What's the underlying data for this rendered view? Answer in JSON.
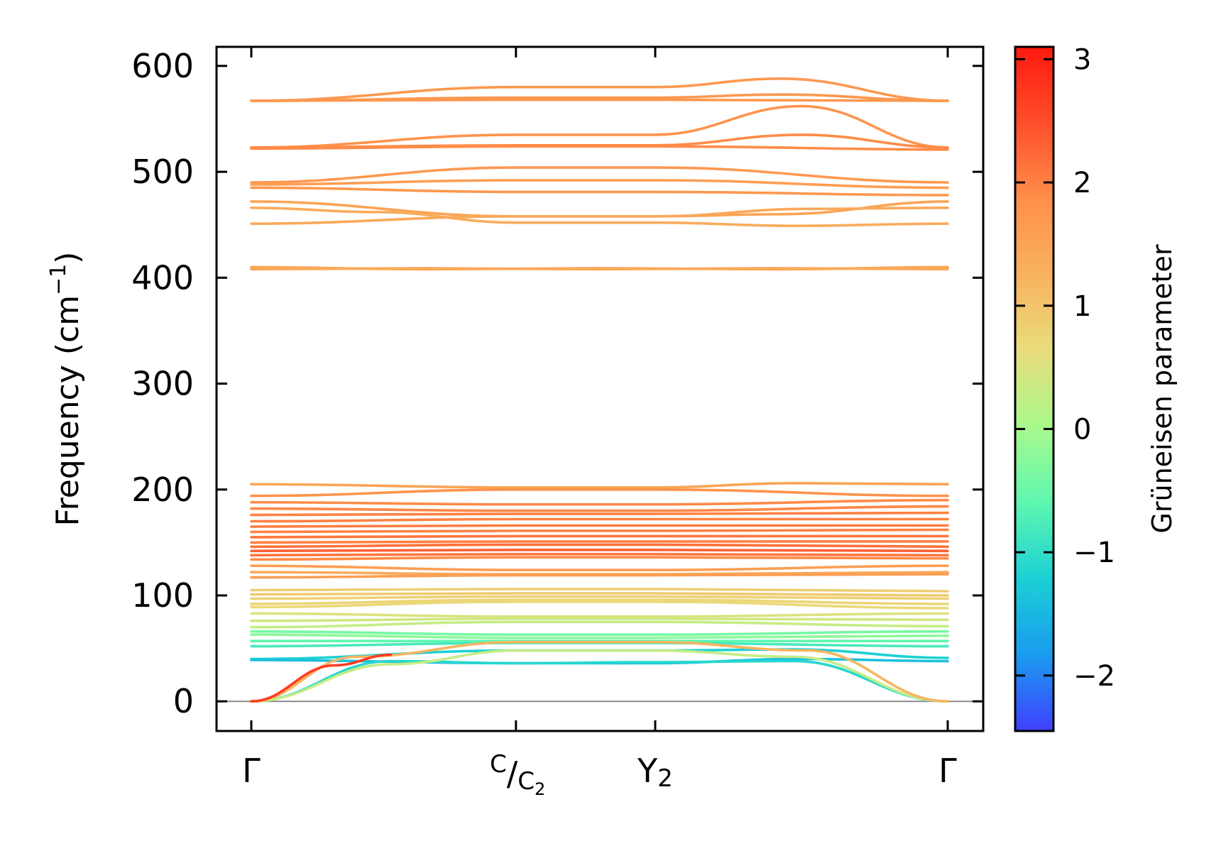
{
  "chart_data": {
    "type": "line",
    "ylabel": "Frequency (cm",
    "ylabel_sup": "−1",
    "ylabel_close": ")",
    "ylim": [
      -28,
      618
    ],
    "y_ticks": [
      0,
      100,
      200,
      300,
      400,
      500,
      600
    ],
    "x_ticks": [
      {
        "pos": 0.0,
        "label": "Γ"
      },
      {
        "pos": 0.38,
        "label_sup": "C",
        "label_mid": "/",
        "label_sub": "C",
        "label_subsub": "2"
      },
      {
        "pos": 0.58,
        "label": "Y",
        "label_sub": "2"
      },
      {
        "pos": 1.0,
        "label": "Γ"
      }
    ],
    "colorbar": {
      "label": "Grüneisen parameter",
      "range": [
        -2.45,
        3.1
      ],
      "ticks": [
        -2,
        -1,
        0,
        1,
        2,
        3
      ],
      "tick_labels": [
        "−2",
        "−1",
        "0",
        "1",
        "2",
        "3"
      ],
      "colormap": [
        "#4040ff",
        "#1a9bef",
        "#1bd0d5",
        "#5ef7b0",
        "#a8f98c",
        "#e9dd7c",
        "#f8b25f",
        "#ff8f4a",
        "#ff4e2a",
        "#ff1a10"
      ]
    },
    "zero_line": 0,
    "series": [
      {
        "x": [
          0,
          0.38,
          0.58,
          0.76,
          1.0
        ],
        "y": [
          567,
          580,
          580,
          588,
          567
        ],
        "g": 1.7
      },
      {
        "x": [
          0,
          0.38,
          0.58,
          1.0
        ],
        "y": [
          567,
          568,
          568,
          567
        ],
        "g": 1.7
      },
      {
        "x": [
          0,
          0.38,
          0.58,
          0.76,
          1.0
        ],
        "y": [
          567,
          570,
          570,
          573,
          567
        ],
        "g": 1.7
      },
      {
        "x": [
          0,
          0.38,
          0.58,
          0.79,
          1.0
        ],
        "y": [
          523,
          535,
          535,
          562,
          523
        ],
        "g": 1.8
      },
      {
        "x": [
          0,
          0.38,
          0.58,
          0.79,
          1.0
        ],
        "y": [
          523,
          525,
          525,
          535,
          523
        ],
        "g": 1.9
      },
      {
        "x": [
          0,
          0.38,
          0.58,
          1.0
        ],
        "y": [
          522,
          524,
          524,
          521
        ],
        "g": 1.9
      },
      {
        "x": [
          0,
          0.38,
          0.58,
          1.0
        ],
        "y": [
          490,
          504,
          504,
          490
        ],
        "g": 1.7
      },
      {
        "x": [
          0,
          0.38,
          0.58,
          1.0
        ],
        "y": [
          488,
          492,
          492,
          485
        ],
        "g": 1.6
      },
      {
        "x": [
          0,
          0.38,
          0.58,
          1.0
        ],
        "y": [
          485,
          481,
          481,
          478
        ],
        "g": 1.7
      },
      {
        "x": [
          0,
          0.38,
          0.58,
          0.76,
          1.0
        ],
        "y": [
          472,
          458,
          458,
          460,
          472
        ],
        "g": 1.5
      },
      {
        "x": [
          0,
          0.18,
          0.38,
          0.58,
          0.78,
          1.0
        ],
        "y": [
          466,
          462,
          452,
          452,
          449,
          451
        ],
        "g": 1.35
      },
      {
        "x": [
          0,
          0.38,
          0.58,
          0.8,
          1.0
        ],
        "y": [
          451,
          458,
          458,
          465,
          466
        ],
        "g": 1.4
      },
      {
        "x": [
          0,
          0.25,
          0.5,
          0.75,
          1.0
        ],
        "y": [
          410,
          408,
          409,
          408,
          410
        ],
        "g": 1.5
      },
      {
        "x": [
          0,
          0.25,
          0.5,
          0.75,
          1.0
        ],
        "y": [
          408,
          409,
          408,
          409,
          408
        ],
        "g": 1.4
      },
      {
        "x": [
          0,
          0.38,
          0.58,
          0.78,
          1.0
        ],
        "y": [
          205,
          202,
          202,
          206,
          205
        ],
        "g": 1.5
      },
      {
        "x": [
          0,
          0.38,
          0.58,
          1.0
        ],
        "y": [
          194,
          200,
          200,
          194
        ],
        "g": 1.8
      },
      {
        "x": [
          0,
          0.38,
          0.58,
          1.0
        ],
        "y": [
          188,
          186,
          186,
          190
        ],
        "g": 1.9
      },
      {
        "x": [
          0,
          0.38,
          0.58,
          1.0
        ],
        "y": [
          182,
          180,
          180,
          184
        ],
        "g": 1.95
      },
      {
        "x": [
          0,
          0.38,
          0.58,
          1.0
        ],
        "y": [
          176,
          177,
          177,
          178
        ],
        "g": 2.0
      },
      {
        "x": [
          0,
          0.38,
          0.58,
          1.0
        ],
        "y": [
          170,
          172,
          172,
          172
        ],
        "g": 2.0
      },
      {
        "x": [
          0,
          0.38,
          0.58,
          1.0
        ],
        "y": [
          165,
          166,
          166,
          166
        ],
        "g": 2.05
      },
      {
        "x": [
          0,
          0.38,
          0.58,
          1.0
        ],
        "y": [
          160,
          161,
          161,
          162
        ],
        "g": 2.0
      },
      {
        "x": [
          0,
          0.38,
          0.58,
          1.0
        ],
        "y": [
          155,
          156,
          156,
          156
        ],
        "g": 2.1
      },
      {
        "x": [
          0,
          0.38,
          0.58,
          1.0
        ],
        "y": [
          150,
          151,
          151,
          151
        ],
        "g": 2.0
      },
      {
        "x": [
          0,
          0.38,
          0.58,
          1.0
        ],
        "y": [
          146,
          148,
          148,
          146
        ],
        "g": 2.15
      },
      {
        "x": [
          0,
          0.38,
          0.58,
          1.0
        ],
        "y": [
          142,
          143,
          143,
          142
        ],
        "g": 2.3
      },
      {
        "x": [
          0,
          0.38,
          0.58,
          1.0
        ],
        "y": [
          138,
          139,
          139,
          138
        ],
        "g": 2.1
      },
      {
        "x": [
          0,
          0.38,
          0.58,
          1.0
        ],
        "y": [
          134,
          136,
          136,
          135
        ],
        "g": 1.9
      },
      {
        "x": [
          0,
          0.38,
          0.58,
          1.0
        ],
        "y": [
          128,
          124,
          124,
          128
        ],
        "g": 1.6
      },
      {
        "x": [
          0,
          0.38,
          0.58,
          1.0
        ],
        "y": [
          122,
          120,
          120,
          122
        ],
        "g": 1.4
      },
      {
        "x": [
          0,
          0.38,
          0.58,
          1.0
        ],
        "y": [
          117,
          119,
          119,
          120
        ],
        "g": 1.6
      },
      {
        "x": [
          0,
          0.38,
          0.58,
          1.0
        ],
        "y": [
          105,
          106,
          106,
          104
        ],
        "g": 0.85
      },
      {
        "x": [
          0,
          0.38,
          0.58,
          1.0
        ],
        "y": [
          101,
          102,
          102,
          100
        ],
        "g": 0.9
      },
      {
        "x": [
          0,
          0.38,
          0.58,
          1.0
        ],
        "y": [
          97,
          99,
          99,
          97
        ],
        "g": 0.8
      },
      {
        "x": [
          0,
          0.38,
          0.58,
          1.0
        ],
        "y": [
          92,
          96,
          96,
          92
        ],
        "g": 0.75
      },
      {
        "x": [
          0,
          0.38,
          0.58,
          1.0
        ],
        "y": [
          89,
          94,
          94,
          88
        ],
        "g": 0.7
      },
      {
        "x": [
          0,
          0.38,
          0.58,
          1.0
        ],
        "y": [
          83,
          80,
          80,
          83
        ],
        "g": 0.5
      },
      {
        "x": [
          0,
          0.38,
          0.58,
          1.0
        ],
        "y": [
          76,
          78,
          78,
          77
        ],
        "g": 0.4
      },
      {
        "x": [
          0,
          0.38,
          0.58,
          1.0
        ],
        "y": [
          70,
          75,
          75,
          71
        ],
        "g": 0.3
      },
      {
        "x": [
          0,
          0.38,
          0.58,
          1.0
        ],
        "y": [
          66,
          63,
          63,
          66
        ],
        "g": -0.4
      },
      {
        "x": [
          0,
          0.38,
          0.58,
          1.0
        ],
        "y": [
          63,
          60,
          60,
          62
        ],
        "g": -0.2
      },
      {
        "x": [
          0,
          0.38,
          0.58,
          1.0
        ],
        "y": [
          57,
          57,
          57,
          57
        ],
        "g": -0.6
      },
      {
        "x": [
          0,
          0.38,
          0.58,
          1.0
        ],
        "y": [
          52,
          55,
          55,
          52
        ],
        "g": -0.8
      },
      {
        "x": [
          0,
          0.38,
          0.58,
          0.78,
          1.0
        ],
        "y": [
          40,
          48,
          48,
          49,
          41
        ],
        "g": -1.2
      },
      {
        "x": [
          0,
          0.38,
          0.58,
          0.78,
          1.0
        ],
        "y": [
          39,
          36,
          36,
          40,
          38
        ],
        "g": -1.4
      },
      {
        "x": [
          0,
          0.2,
          0.38,
          0.58,
          0.78,
          1.0
        ],
        "y": [
          0,
          38,
          36,
          37,
          38,
          0
        ],
        "g": -1.1
      },
      {
        "x": [
          0,
          0.2,
          0.38,
          0.58,
          0.78,
          1.0
        ],
        "y": [
          0,
          35,
          48,
          48,
          42,
          0
        ],
        "g": 0.3
      },
      {
        "x": [
          0,
          0.15,
          0.38,
          0.58,
          0.8,
          1.0
        ],
        "y": [
          0,
          42,
          56,
          56,
          48,
          0
        ],
        "g": 1.2
      },
      {
        "x": [
          0,
          0.12,
          0.2
        ],
        "y": [
          0,
          34,
          44
        ],
        "g": 2.7
      }
    ]
  }
}
